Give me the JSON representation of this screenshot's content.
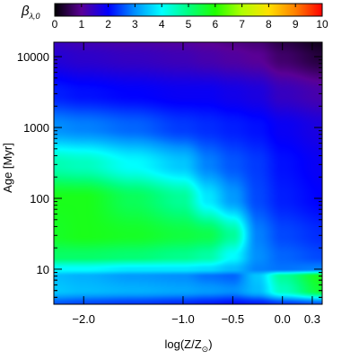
{
  "chart_data": {
    "type": "heatmap",
    "title": "",
    "xlabel": "log(Z/Z",
    "xlabel_sub": "⊙",
    "xlabel_close": ")",
    "ylabel": "Age [Myr]",
    "colorbar_label": "β",
    "colorbar_label_sub": "λ,0",
    "y_scale": "log",
    "xlim": [
      -2.3,
      0.4
    ],
    "ylim": [
      3.2,
      16000
    ],
    "colorbar_range": [
      0,
      10
    ],
    "colorbar_ticks": [
      "0",
      "1",
      "2",
      "3",
      "4",
      "5",
      "6",
      "7",
      "8",
      "9",
      "10"
    ],
    "colorbar_tick_values": [
      0,
      1,
      2,
      3,
      4,
      5,
      6,
      7,
      8,
      9,
      10
    ],
    "colormap_stops": [
      {
        "v": 0,
        "color": "#000000"
      },
      {
        "v": 1,
        "color": "#5a0096"
      },
      {
        "v": 2,
        "color": "#0000ff"
      },
      {
        "v": 3,
        "color": "#0090ff"
      },
      {
        "v": 4,
        "color": "#00ffff"
      },
      {
        "v": 5,
        "color": "#00ff80"
      },
      {
        "v": 6,
        "color": "#20ff00"
      },
      {
        "v": 7,
        "color": "#b0ff00"
      },
      {
        "v": 8,
        "color": "#ffe000"
      },
      {
        "v": 9,
        "color": "#ff8000"
      },
      {
        "v": 10,
        "color": "#ff0000"
      }
    ],
    "x_ticks": [
      {
        "value": -2.0,
        "label": "−2.0"
      },
      {
        "value": -1.0,
        "label": "−1.0"
      },
      {
        "value": -0.5,
        "label": "−0.5"
      },
      {
        "value": 0.0,
        "label": "0.0"
      },
      {
        "value": 0.3,
        "label": "0.3"
      }
    ],
    "y_ticks": [
      {
        "value": 10,
        "label": "10"
      },
      {
        "value": 100,
        "label": "100"
      },
      {
        "value": 1000,
        "label": "1000"
      },
      {
        "value": 10000,
        "label": "10000"
      }
    ],
    "grid": false,
    "x_grid": [
      -2.3,
      -2.0,
      -1.5,
      -1.0,
      -0.75,
      -0.5,
      -0.25,
      0.0,
      0.4
    ],
    "y_grid": [
      3.2,
      5,
      8,
      10,
      15,
      30,
      100,
      300,
      1000,
      3000,
      10000,
      16000
    ],
    "z_values": [
      [
        2.6,
        2.5,
        2.4,
        2.3,
        2.2,
        2.1,
        2.2,
        2.4,
        2.6
      ],
      [
        3.5,
        3.4,
        3.3,
        3.2,
        3.1,
        3.0,
        3.4,
        4.5,
        5.6
      ],
      [
        3.4,
        3.3,
        3.1,
        3.0,
        2.8,
        2.7,
        3.5,
        4.8,
        5.8
      ],
      [
        4.0,
        4.0,
        3.8,
        3.8,
        3.7,
        3.4,
        2.9,
        2.8,
        2.9
      ],
      [
        5.2,
        5.2,
        5.1,
        4.9,
        4.7,
        4.0,
        3.0,
        2.7,
        2.5
      ],
      [
        5.7,
        5.8,
        5.7,
        5.5,
        5.4,
        4.8,
        2.9,
        2.5,
        2.3
      ],
      [
        5.8,
        5.8,
        5.3,
        4.8,
        3.8,
        3.1,
        2.5,
        2.2,
        2.0
      ],
      [
        4.6,
        4.5,
        4.0,
        3.5,
        2.9,
        2.6,
        2.4,
        2.1,
        1.9
      ],
      [
        3.0,
        2.9,
        2.7,
        2.4,
        2.3,
        2.2,
        2.1,
        1.9,
        1.7
      ],
      [
        2.2,
        2.1,
        2.0,
        1.9,
        1.9,
        1.8,
        1.7,
        1.4,
        1.2
      ],
      [
        1.6,
        1.5,
        1.4,
        1.3,
        1.2,
        1.1,
        1.0,
        0.7,
        0.4
      ],
      [
        1.4,
        1.3,
        1.2,
        1.1,
        1.0,
        0.9,
        0.8,
        0.5,
        0.2
      ]
    ]
  }
}
